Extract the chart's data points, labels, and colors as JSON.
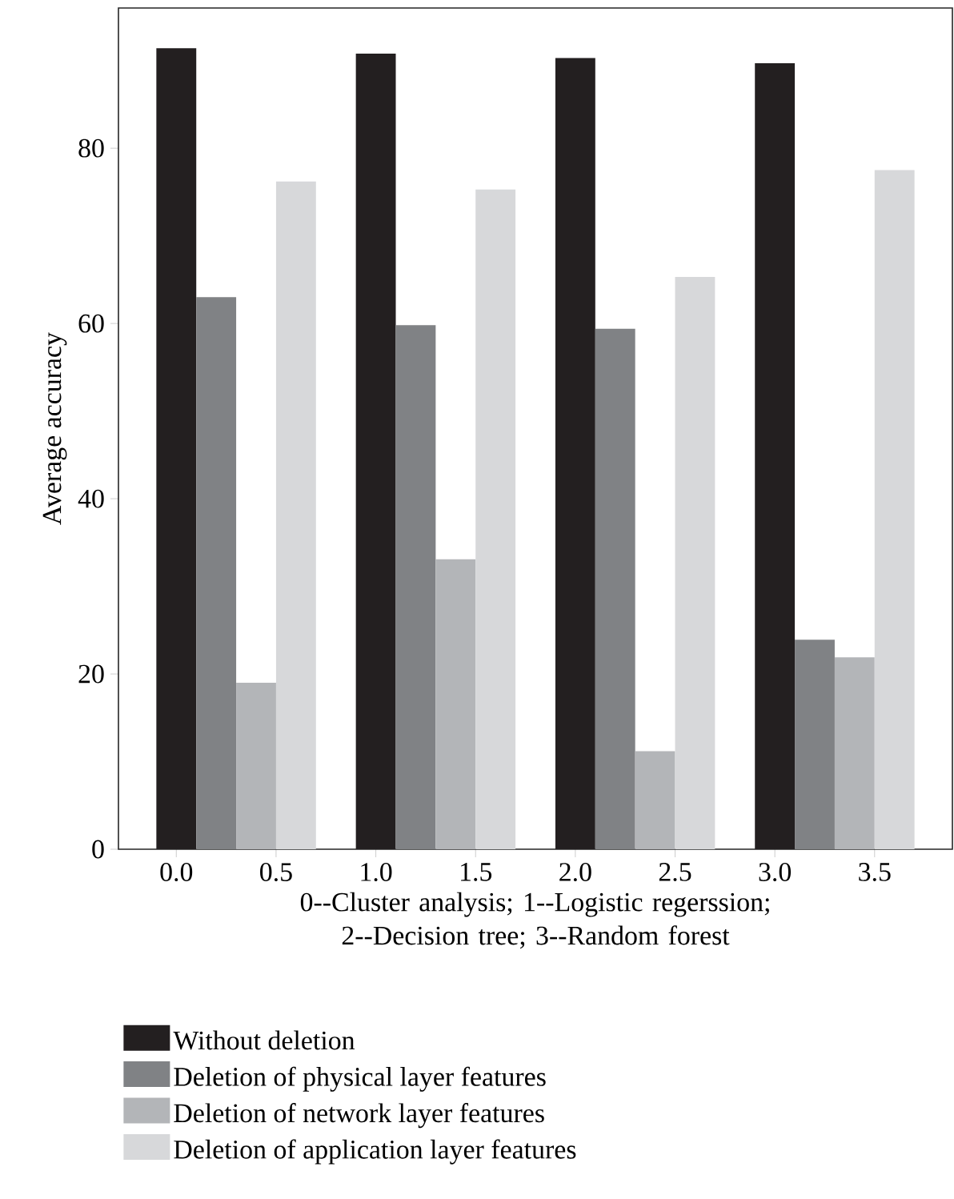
{
  "chart_data": {
    "type": "bar",
    "xlabel": "0--Cluster analysis; 1--Logistic regerssion; 2--Decision tree; 3--Random forest",
    "ylabel": "Average accuracy",
    "xlim": [
      -0.29,
      3.89
    ],
    "ylim": [
      0,
      96
    ],
    "xticks": [
      {
        "value": 0,
        "label": "0.0"
      },
      0.5,
      {
        "value": 1,
        "label": "1.0"
      },
      1.5,
      {
        "value": 2,
        "label": "2.0"
      },
      2.5,
      {
        "value": 3,
        "label": "3.0"
      },
      3.5
    ],
    "yticks": [
      0,
      20,
      40,
      60,
      80
    ],
    "legend": "bottom",
    "series": [
      {
        "name": "Without deletion",
        "color": "#231f20",
        "x": [
          0,
          1,
          2,
          3
        ],
        "values": [
          91.4,
          90.8,
          90.3,
          89.7
        ]
      },
      {
        "name": "Deletion of physical layer features",
        "color": "#808285",
        "x": [
          0.2,
          1.2,
          2.2,
          3.2
        ],
        "values": [
          63.0,
          59.8,
          59.4,
          23.9
        ]
      },
      {
        "name": "Deletion of network layer features",
        "color": "#b3b5b8",
        "x": [
          0.4,
          1.4,
          2.4,
          3.4
        ],
        "values": [
          19.0,
          33.1,
          11.2,
          21.9
        ]
      },
      {
        "name": "Deletion of application layer features",
        "color": "#d7d8da",
        "x": [
          0.6,
          1.6,
          2.6,
          3.6
        ],
        "values": [
          76.2,
          75.3,
          65.3,
          77.5
        ]
      }
    ]
  }
}
